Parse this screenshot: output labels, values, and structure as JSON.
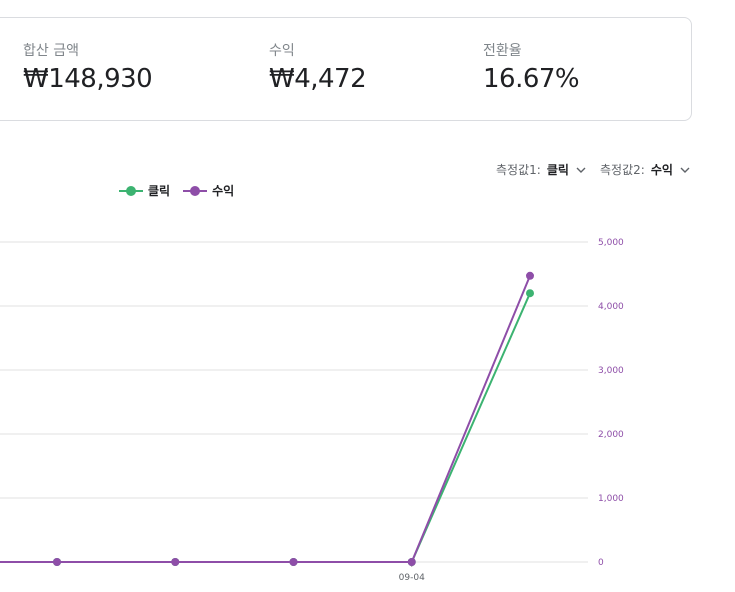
{
  "summary": {
    "total_amount_label": "합산 금액",
    "total_amount_value": "₩148,930",
    "revenue_label": "수익",
    "revenue_value": "₩4,472",
    "conversion_label": "전환율",
    "conversion_value": "16.67%"
  },
  "selectors": {
    "metric1_label": "측정값1:",
    "metric1_value": "클릭",
    "metric2_label": "측정값2:",
    "metric2_value": "수익"
  },
  "colors": {
    "clicks": "#3cb371",
    "revenue": "#8e4ea8",
    "axis_right": "#8e4ea8",
    "grid": "#e0e0e0"
  },
  "chart_data": {
    "type": "line",
    "x": [
      "",
      "",
      "",
      "",
      "09-04",
      ""
    ],
    "series": [
      {
        "name": "클릭",
        "values": [
          0,
          0,
          0,
          0,
          0,
          4200
        ]
      },
      {
        "name": "수익",
        "values": [
          0,
          0,
          0,
          0,
          0,
          4472
        ]
      }
    ],
    "y_right_ticks": [
      "0",
      "1,000",
      "2,000",
      "3,000",
      "4,000",
      "5,000"
    ],
    "ylim": [
      0,
      5000
    ],
    "grid": true,
    "legend": "top-left"
  }
}
